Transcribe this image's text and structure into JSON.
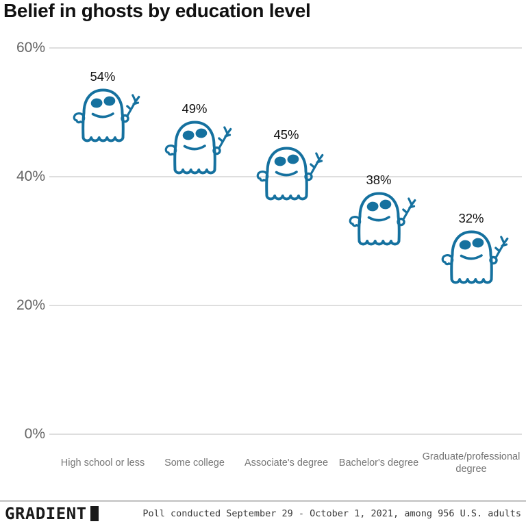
{
  "title": "Belief in ghosts by education level",
  "chart_data": {
    "type": "scatter",
    "marker": "ghost-icon",
    "title": "Belief in ghosts by education level",
    "categories": [
      "High school or less",
      "Some college",
      "Associate's degree",
      "Bachelor's degree",
      "Graduate/professional degree"
    ],
    "values": [
      54,
      49,
      45,
      38,
      32
    ],
    "value_labels": [
      "54%",
      "49%",
      "45%",
      "38%",
      "32%"
    ],
    "xlabel": "",
    "ylabel": "",
    "ylim": [
      0,
      60
    ],
    "yticks": [
      0,
      20,
      40,
      60
    ],
    "ytick_labels": [
      "0%",
      "20%",
      "40%",
      "60%"
    ],
    "grid": "horizontal",
    "legend": "none"
  },
  "colors": {
    "ghost": "#15719F",
    "grid": "#dedede",
    "tick_label": "#656565",
    "category_label": "#757575",
    "title": "#111111"
  },
  "footer": {
    "brand": "GRADIENT",
    "source_note": "Poll conducted September 29 - October 1, 2021, among 956 U.S. adults"
  }
}
